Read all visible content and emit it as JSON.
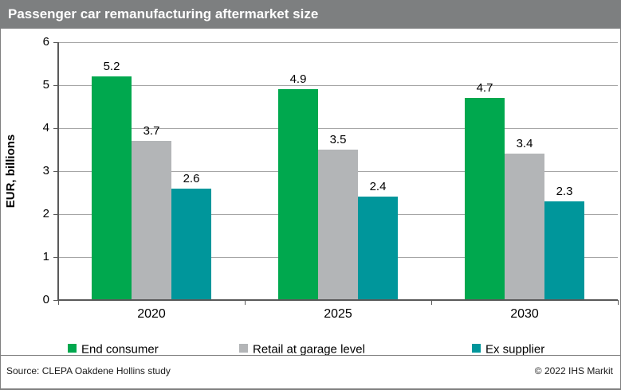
{
  "header": {
    "title": "Passenger car remanufacturing aftermarket size"
  },
  "chart_data": {
    "type": "bar",
    "title": "Passenger car remanufacturing aftermarket size",
    "categories": [
      "2020",
      "2025",
      "2030"
    ],
    "series": [
      {
        "name": "End consumer",
        "color": "#00a84e",
        "values": [
          5.2,
          4.9,
          4.7
        ]
      },
      {
        "name": "Retail at garage level",
        "color": "#b3b5b7",
        "values": [
          3.7,
          3.5,
          3.4
        ]
      },
      {
        "name": "Ex supplier",
        "color": "#00969b",
        "values": [
          2.6,
          2.4,
          2.3
        ]
      }
    ],
    "xlabel": "",
    "ylabel": "EUR, billions",
    "ylim": [
      0,
      6
    ],
    "ytick_step": 1,
    "grid": true,
    "value_labels": true,
    "legend_position": "bottom"
  },
  "colors": {
    "header_bg": "#7d7f80",
    "header_text": "#ffffff",
    "gridline": "#a6a6a6",
    "axis": "#595959",
    "frame_border": "#808080"
  },
  "footer": {
    "source": "Source: CLEPA Oakdene Hollins study",
    "copyright": "© 2022 IHS Markit"
  }
}
